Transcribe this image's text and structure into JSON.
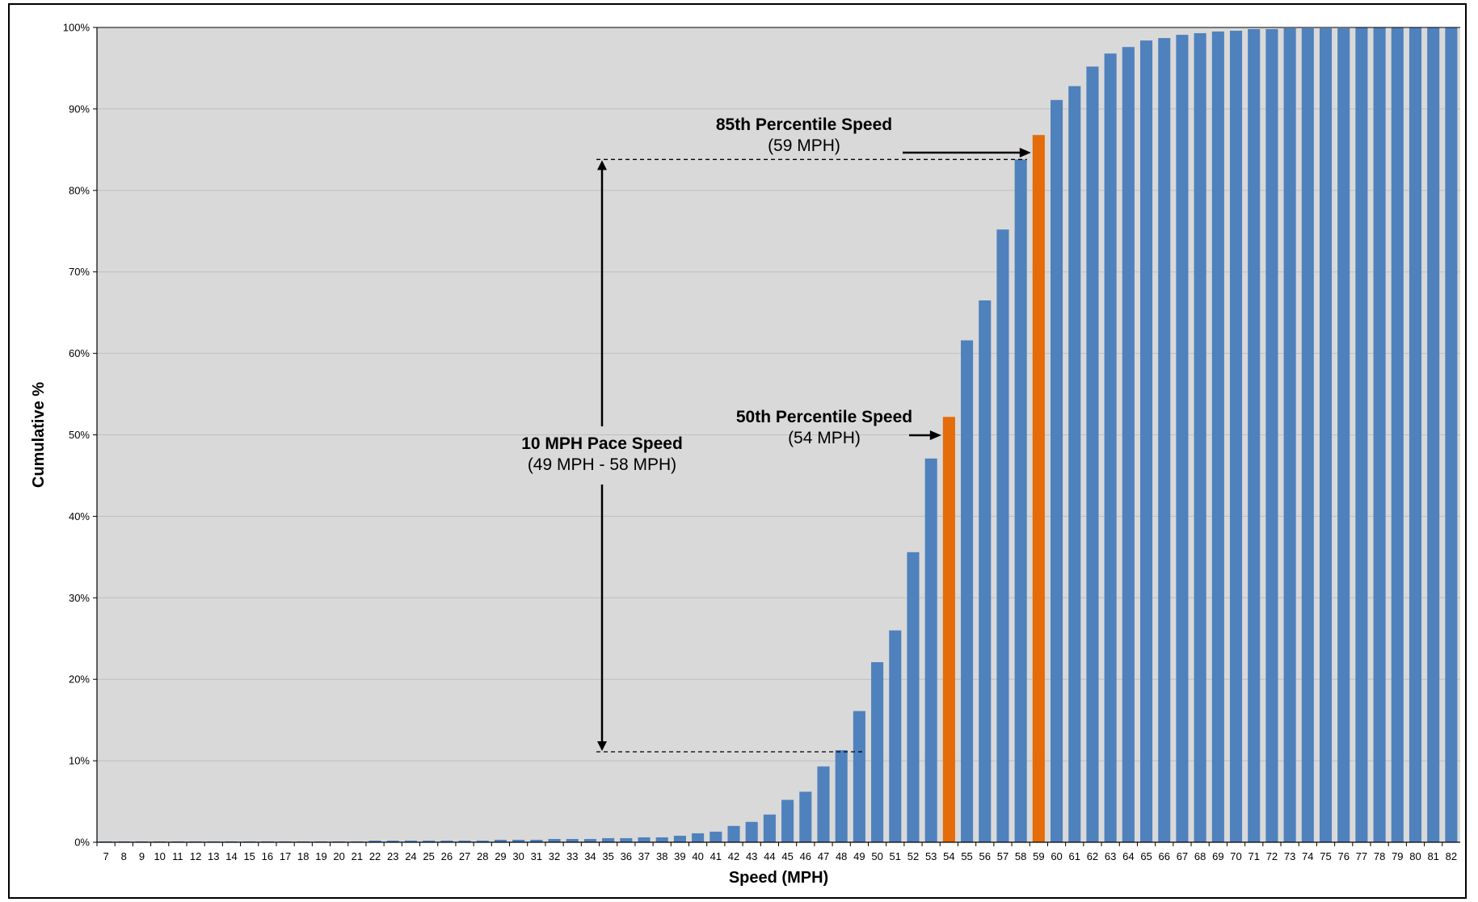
{
  "chart_data": {
    "type": "bar",
    "title": "",
    "xlabel": "Speed (MPH)",
    "ylabel": "Cumulative %",
    "ylim": [
      0,
      100
    ],
    "y_tick_labels": [
      "0%",
      "10%",
      "20%",
      "30%",
      "40%",
      "50%",
      "60%",
      "70%",
      "80%",
      "90%",
      "100%"
    ],
    "grid": true,
    "legend": "none",
    "categories": [
      "7",
      "8",
      "9",
      "10",
      "11",
      "12",
      "13",
      "14",
      "15",
      "16",
      "17",
      "18",
      "19",
      "20",
      "21",
      "22",
      "23",
      "24",
      "25",
      "26",
      "27",
      "28",
      "29",
      "30",
      "31",
      "32",
      "33",
      "34",
      "35",
      "36",
      "37",
      "38",
      "39",
      "40",
      "41",
      "42",
      "43",
      "44",
      "45",
      "46",
      "47",
      "48",
      "49",
      "50",
      "51",
      "52",
      "53",
      "54",
      "55",
      "56",
      "57",
      "58",
      "59",
      "60",
      "61",
      "62",
      "63",
      "64",
      "65",
      "66",
      "67",
      "68",
      "69",
      "70",
      "71",
      "72",
      "73",
      "74",
      "75",
      "76",
      "77",
      "78",
      "79",
      "80",
      "81",
      "82"
    ],
    "values": [
      0.1,
      0.1,
      0.1,
      0.1,
      0.1,
      0.1,
      0.1,
      0.1,
      0.1,
      0.1,
      0.1,
      0.1,
      0.1,
      0.1,
      0.1,
      0.2,
      0.2,
      0.2,
      0.2,
      0.2,
      0.2,
      0.2,
      0.3,
      0.3,
      0.3,
      0.4,
      0.4,
      0.4,
      0.5,
      0.5,
      0.6,
      0.6,
      0.8,
      1.1,
      1.3,
      2.0,
      2.5,
      3.4,
      5.2,
      6.2,
      9.3,
      11.3,
      16.1,
      22.1,
      26.0,
      35.6,
      47.1,
      52.2,
      61.6,
      66.5,
      75.2,
      83.8,
      86.8,
      91.1,
      92.8,
      95.2,
      96.8,
      97.6,
      98.4,
      98.7,
      99.1,
      99.3,
      99.5,
      99.6,
      99.8,
      99.8,
      99.9,
      99.9,
      99.9,
      99.9,
      100,
      100,
      100,
      100,
      100,
      100
    ],
    "highlight_categories": [
      "54",
      "59"
    ],
    "colors": {
      "bar": "#4F81BD",
      "highlight": "#E46C0A",
      "plot_bg": "#D9D9D9",
      "grid": "#BFBFBF"
    },
    "annotations": {
      "p85_title": "85th Percentile Speed",
      "p85_value": "(59 MPH)",
      "p50_title": "50th Percentile Speed",
      "p50_value": "(54 MPH)",
      "pace_title": "10 MPH Pace Speed",
      "pace_value": "(49 MPH - 58 MPH)"
    }
  }
}
